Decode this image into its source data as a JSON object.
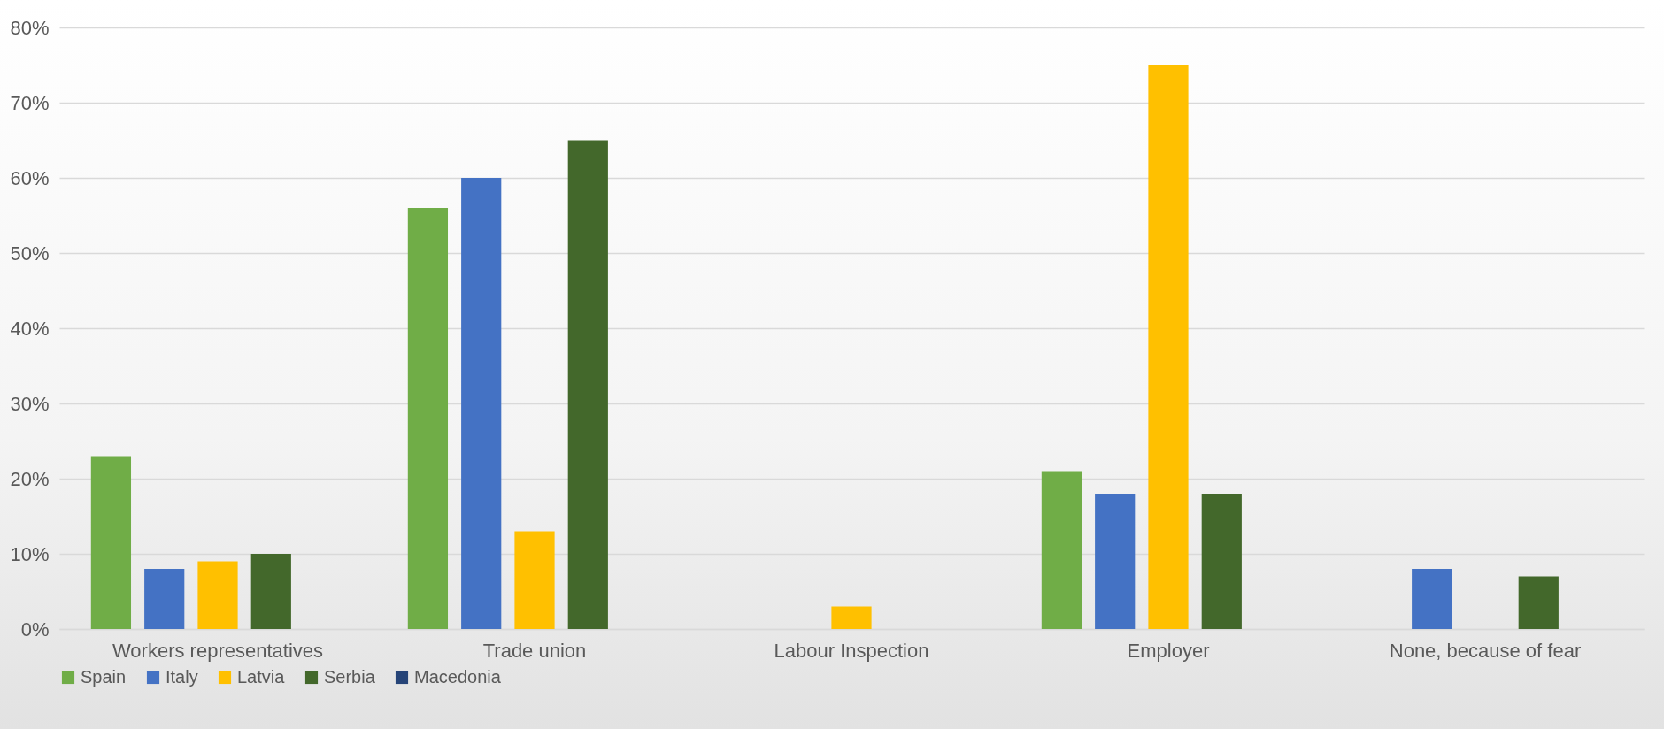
{
  "chart_data": {
    "type": "bar",
    "categories": [
      "Workers representatives",
      "Trade union",
      "Labour Inspection",
      "Employer",
      "None, because of fear"
    ],
    "series": [
      {
        "name": "Spain",
        "color": "#70ad47",
        "values": [
          23,
          56,
          null,
          21,
          null
        ]
      },
      {
        "name": "Italy",
        "color": "#4472c4",
        "values": [
          8,
          60,
          null,
          18,
          8
        ]
      },
      {
        "name": "Latvia",
        "color": "#ffc000",
        "values": [
          9,
          13,
          3,
          75,
          null
        ]
      },
      {
        "name": "Serbia",
        "color": "#43682b",
        "values": [
          10,
          65,
          null,
          18,
          7
        ]
      },
      {
        "name": "Macedonia",
        "color": "#264478",
        "values": [
          null,
          null,
          null,
          null,
          null
        ]
      }
    ],
    "ylim": [
      0,
      80
    ],
    "yticks": [
      {
        "value": 0,
        "label": "0%"
      },
      {
        "value": 10,
        "label": "10%"
      },
      {
        "value": 20,
        "label": "20%"
      },
      {
        "value": 30,
        "label": "30%"
      },
      {
        "value": 40,
        "label": "40%"
      },
      {
        "value": 50,
        "label": "50%"
      },
      {
        "value": 60,
        "label": "60%"
      },
      {
        "value": 70,
        "label": "70%"
      },
      {
        "value": 80,
        "label": "80%"
      }
    ],
    "grid": "y",
    "legend": "bottom"
  }
}
